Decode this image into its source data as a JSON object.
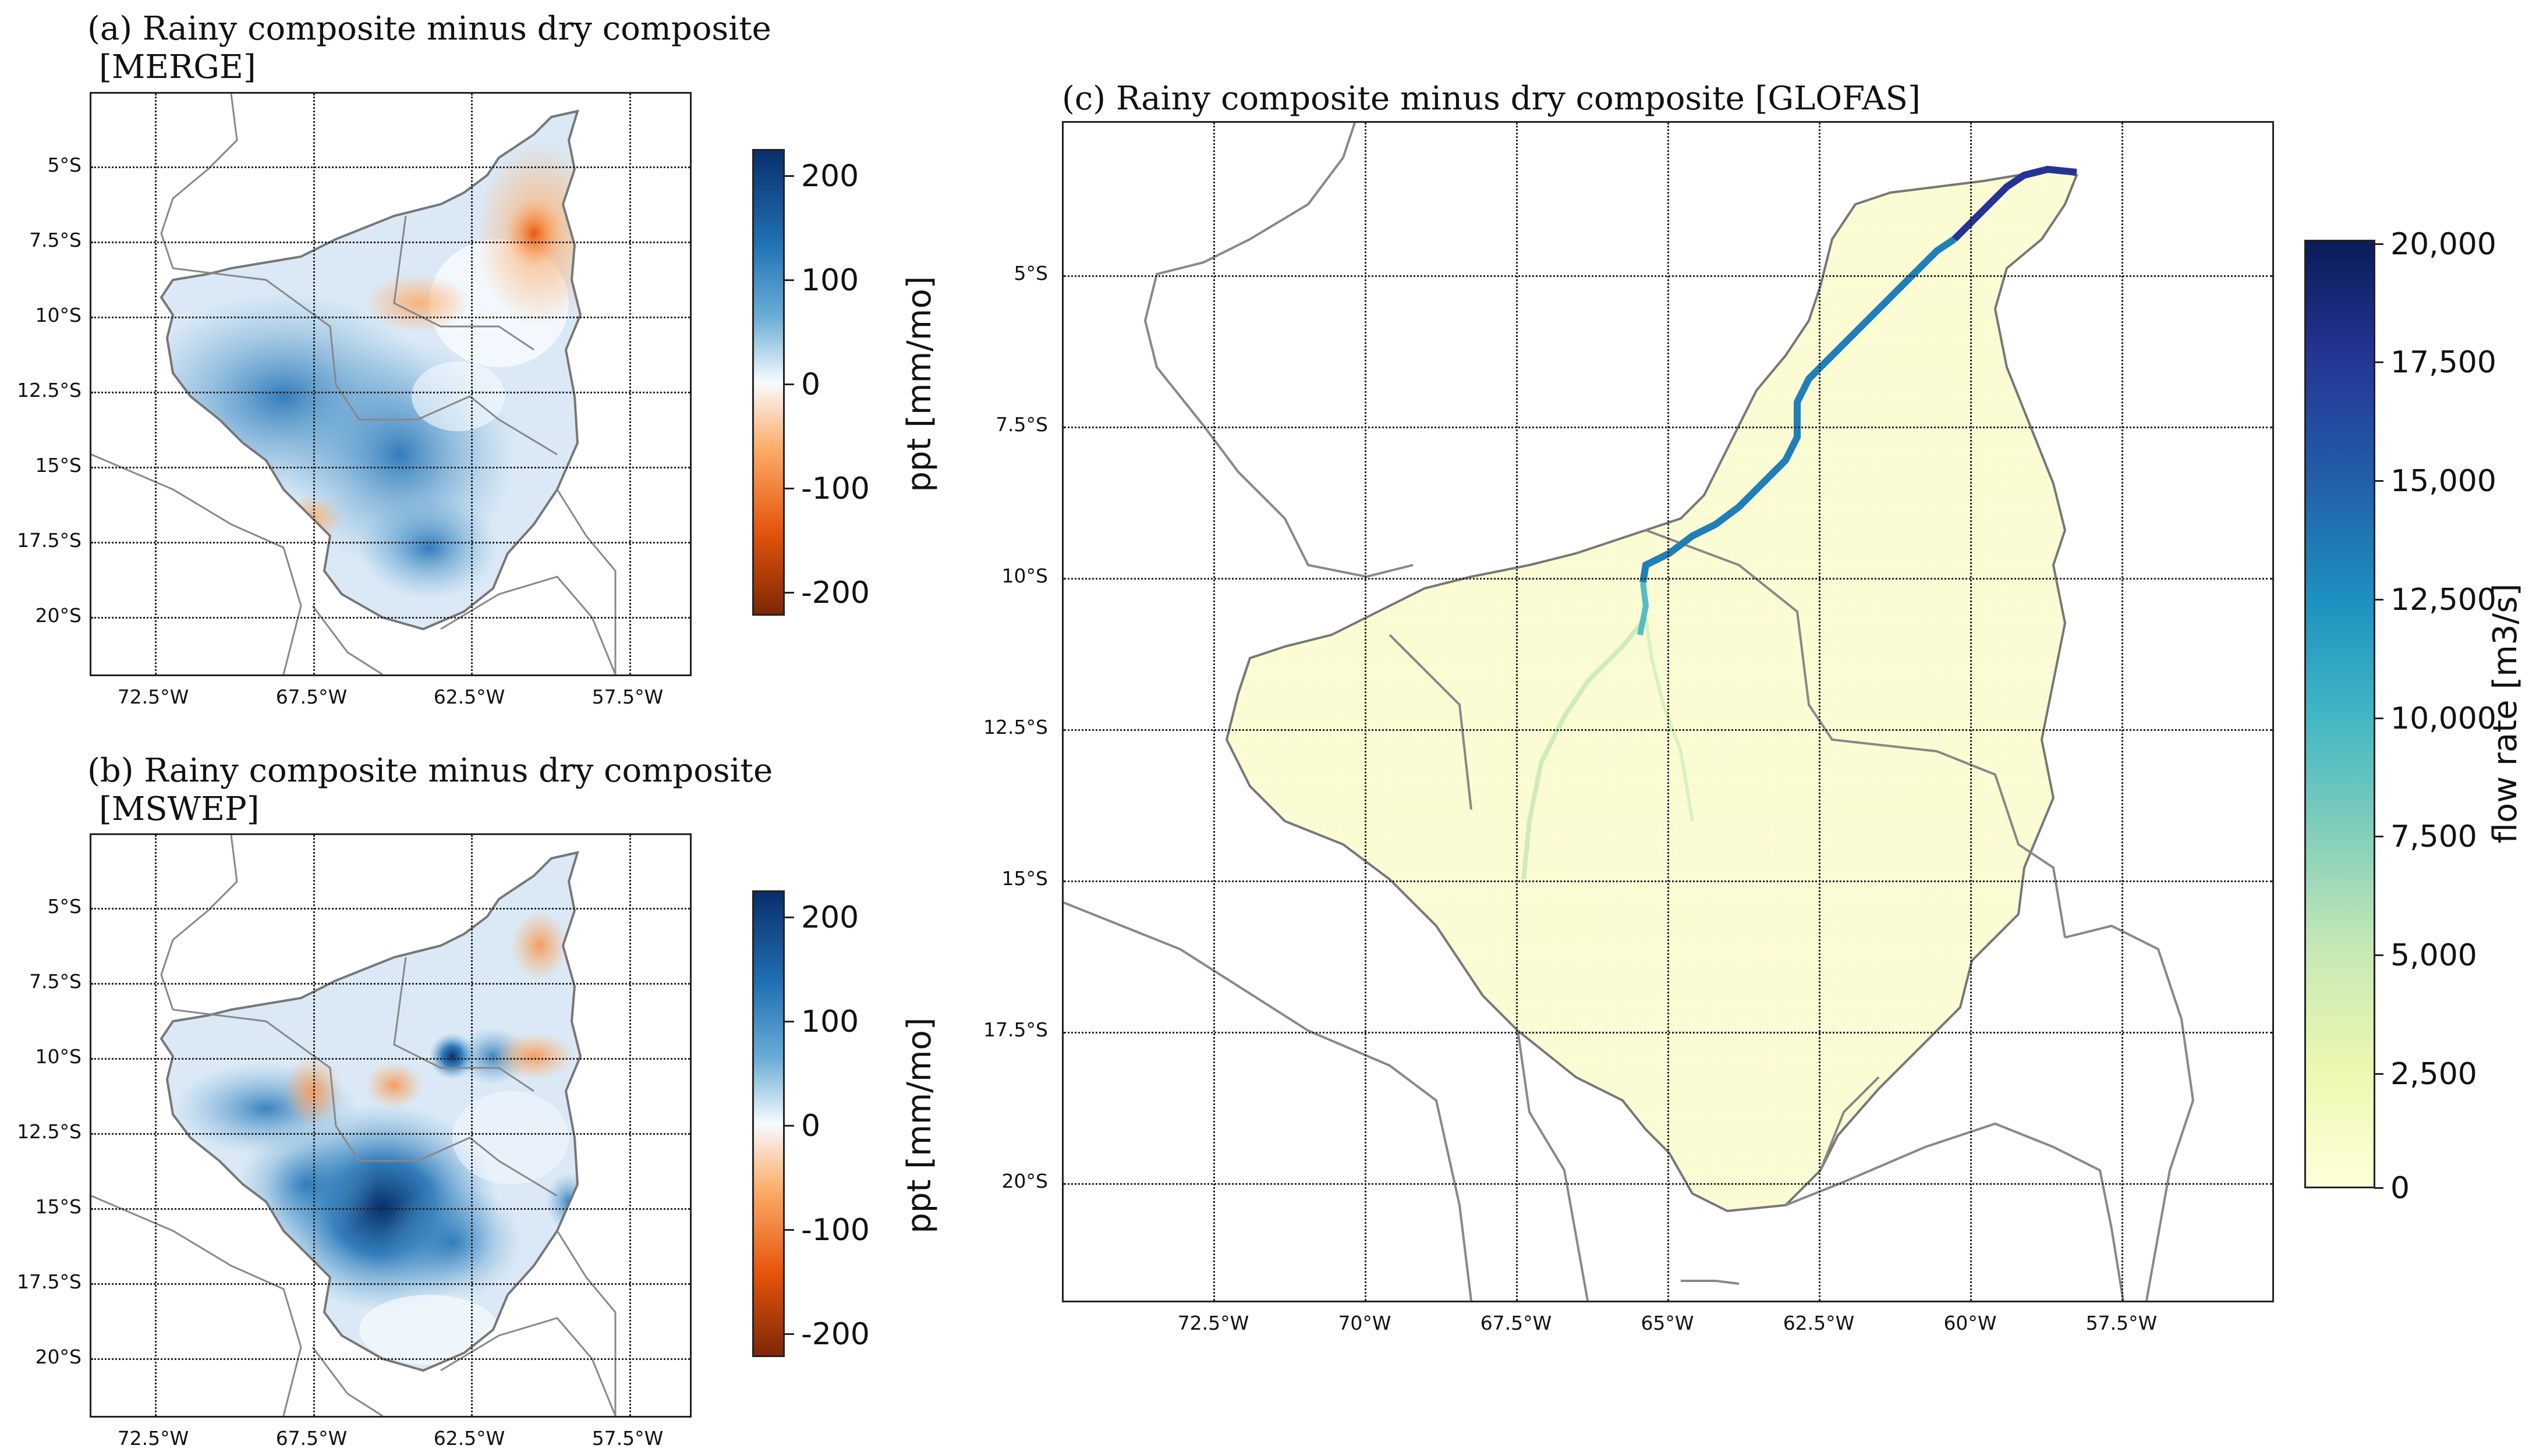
{
  "panels": {
    "a": {
      "title_line1": "(a)  Rainy composite minus dry composite",
      "title_line2": "[MERGE]",
      "lat_ticks": [
        "5°S",
        "7.5°S",
        "10°S",
        "12.5°S",
        "15°S",
        "17.5°S",
        "20°S"
      ],
      "lon_ticks": [
        "72.5°W",
        "67.5°W",
        "62.5°W",
        "57.5°W"
      ],
      "colorbar": {
        "ticks": [
          "200",
          "100",
          "0",
          "-100",
          "-200"
        ],
        "label": "ppt [mm/mo]",
        "range": [
          -220,
          220
        ],
        "colors": [
          "#08306b",
          "#2171b5",
          "#6baed6",
          "#f7fbff",
          "#fdae6b",
          "#e6550d",
          "#7f2704"
        ]
      }
    },
    "b": {
      "title_line1": "(b)  Rainy composite minus dry composite",
      "title_line2": "[MSWEP]",
      "lat_ticks": [
        "5°S",
        "7.5°S",
        "10°S",
        "12.5°S",
        "15°S",
        "17.5°S",
        "20°S"
      ],
      "lon_ticks": [
        "72.5°W",
        "67.5°W",
        "62.5°W",
        "57.5°W"
      ],
      "colorbar": {
        "ticks": [
          "200",
          "100",
          "0",
          "-100",
          "-200"
        ],
        "label": "ppt [mm/mo]",
        "range": [
          -220,
          220
        ],
        "colors": [
          "#08306b",
          "#2171b5",
          "#6baed6",
          "#f7fbff",
          "#fdae6b",
          "#e6550d",
          "#7f2704"
        ]
      }
    },
    "c": {
      "title": "(c)  Rainy composite minus dry composite [GLOFAS]",
      "lat_ticks": [
        "5°S",
        "7.5°S",
        "10°S",
        "12.5°S",
        "15°S",
        "17.5°S",
        "20°S"
      ],
      "lon_ticks": [
        "72.5°W",
        "70°W",
        "67.5°W",
        "65°W",
        "62.5°W",
        "60°W",
        "57.5°W"
      ],
      "colorbar": {
        "ticks": [
          "20,000",
          "17,500",
          "15,000",
          "12,500",
          "10,000",
          "7,500",
          "5,000",
          "2,500",
          "0"
        ],
        "label": "flow rate [m3/s]",
        "range": [
          0,
          20000
        ],
        "colors": [
          "#081d58",
          "#253494",
          "#225ea8",
          "#1d91c0",
          "#41b6c4",
          "#7fcdbb",
          "#c7e9b4",
          "#edf8b1",
          "#ffffd9"
        ]
      }
    }
  },
  "colors": {
    "basin_outline": "#777777",
    "border": "#888888",
    "main_river": "#1f7fb8",
    "downstream_river": "#253494",
    "tributary": "#c7e9b4"
  }
}
